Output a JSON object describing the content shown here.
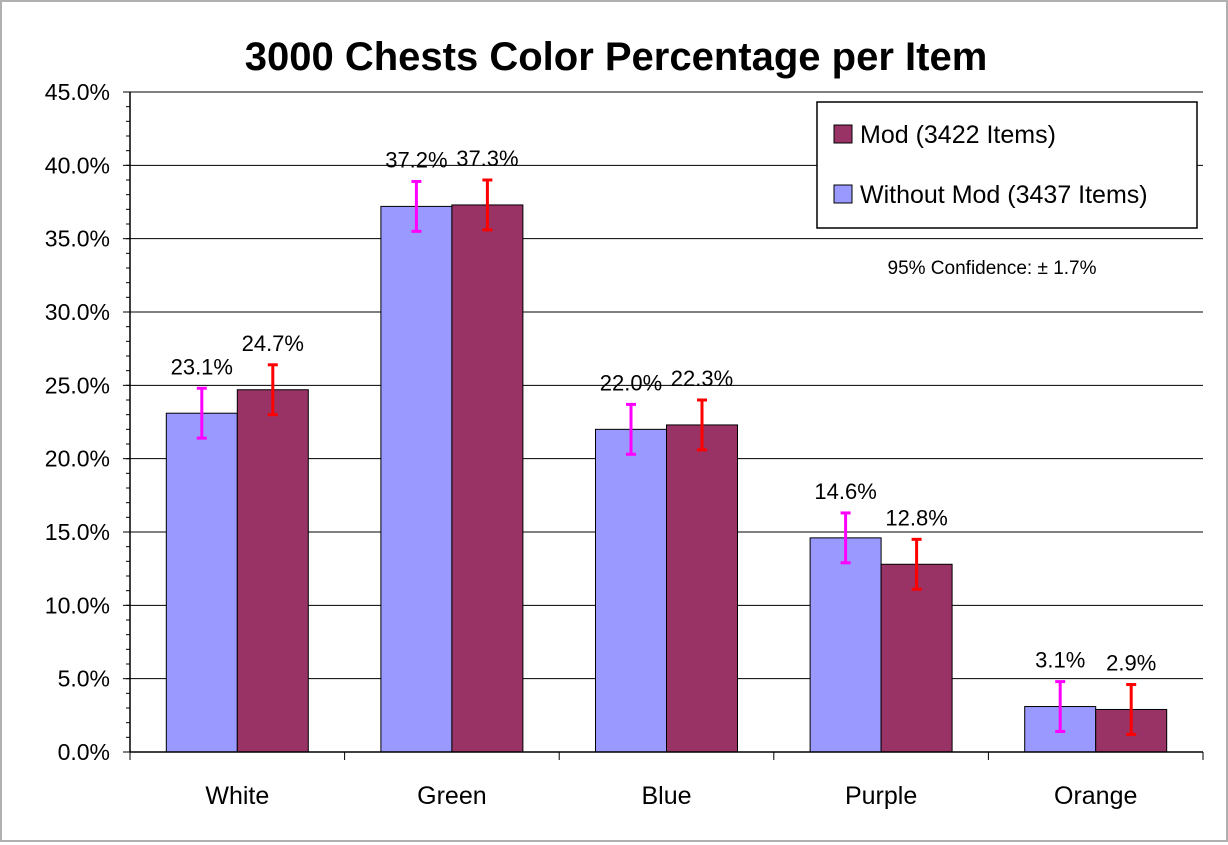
{
  "chart_data": {
    "type": "bar",
    "title": "3000 Chests Color Percentage per Item",
    "xlabel": "",
    "ylabel": "",
    "categories": [
      "White",
      "Green",
      "Blue",
      "Purple",
      "Orange"
    ],
    "ylim": [
      0,
      45
    ],
    "yticks": [
      "0.0%",
      "5.0%",
      "10.0%",
      "15.0%",
      "20.0%",
      "25.0%",
      "30.0%",
      "35.0%",
      "40.0%",
      "45.0%"
    ],
    "grid": true,
    "legend_position": "top-right",
    "series": [
      {
        "name": "Without Mod (3437 Items)",
        "color": "#9999ff",
        "error_bar_color": "#ff00ff",
        "values": [
          23.1,
          37.2,
          22.0,
          14.6,
          3.1
        ],
        "labels": [
          "23.1%",
          "37.2%",
          "22.0%",
          "14.6%",
          "3.1%"
        ],
        "error": 1.7
      },
      {
        "name": "Mod (3422 Items)",
        "color": "#993366",
        "error_bar_color": "#ff0000",
        "values": [
          24.7,
          37.3,
          22.3,
          12.8,
          2.9
        ],
        "labels": [
          "24.7%",
          "37.3%",
          "22.3%",
          "12.8%",
          "2.9%"
        ],
        "error": 1.7
      }
    ],
    "legend_order": [
      1,
      0
    ],
    "annotation": "95% Confidence: ± 1.7%"
  }
}
